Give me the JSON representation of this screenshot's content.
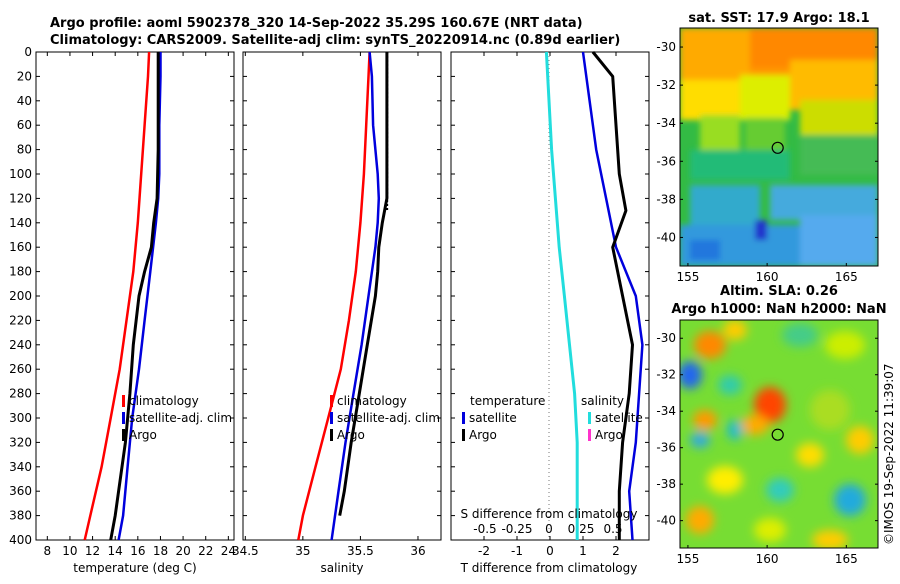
{
  "title": {
    "line1": "Argo profile: aoml 5902378_320 14-Sep-2022 35.29S 160.67E (NRT data)",
    "line2": "Climatology: CARS2009. Satellite-adj clim: synTS_20220914.nc (0.89d earlier)"
  },
  "watermark": "©IMOS 19-Sep-2022 11:39:07",
  "colors": {
    "red": "#ff0000",
    "blue": "#0000dd",
    "black": "#000000",
    "cyan": "#22dddd",
    "magenta": "#ff33cc"
  },
  "chart_data": [
    {
      "type": "line",
      "name": "temperature profile",
      "xlabel": "temperature (deg C)",
      "ylabel": "depth",
      "xlim": [
        7,
        24.5
      ],
      "ylim": [
        0,
        400
      ],
      "xticks": [
        "8",
        "10",
        "12",
        "14",
        "16",
        "18",
        "20",
        "22",
        "24"
      ],
      "yticks": [
        "0",
        "20",
        "40",
        "60",
        "80",
        "100",
        "120",
        "140",
        "160",
        "180",
        "200",
        "220",
        "240",
        "260",
        "280",
        "300",
        "320",
        "340",
        "360",
        "380",
        "400"
      ],
      "series": [
        {
          "name": "climatology",
          "color": "red",
          "depth": [
            0,
            20,
            60,
            100,
            140,
            180,
            220,
            260,
            300,
            340,
            380,
            400
          ],
          "values": [
            17.0,
            16.9,
            16.6,
            16.3,
            16.0,
            15.6,
            15.0,
            14.4,
            13.6,
            12.8,
            11.8,
            11.3
          ]
        },
        {
          "name": "satellite-adj. clim",
          "color": "blue",
          "depth": [
            0,
            20,
            60,
            100,
            120,
            140,
            180,
            220,
            260,
            300,
            340,
            380,
            400
          ],
          "values": [
            18.0,
            18.0,
            17.9,
            17.9,
            17.8,
            17.6,
            17.1,
            16.6,
            16.1,
            15.5,
            15.1,
            14.7,
            14.3
          ]
        },
        {
          "name": "Argo",
          "color": "black",
          "depth": [
            0,
            40,
            80,
            120,
            140,
            160,
            180,
            200,
            240,
            280,
            320,
            360,
            380,
            400
          ],
          "values": [
            17.8,
            17.8,
            17.8,
            17.7,
            17.4,
            17.2,
            16.6,
            16.1,
            15.6,
            15.3,
            14.9,
            14.3,
            14.0,
            13.6
          ]
        }
      ],
      "legend": [
        "climatology",
        "satellite-adj. clim",
        "Argo"
      ]
    },
    {
      "type": "line",
      "name": "salinity profile",
      "xlabel": "salinity",
      "ylim": [
        0,
        400
      ],
      "xlim": [
        34.48,
        36.2
      ],
      "xticks": [
        "34.5",
        "35",
        "35.5",
        "36"
      ],
      "series": [
        {
          "name": "climatology",
          "color": "red",
          "depth": [
            0,
            20,
            60,
            100,
            140,
            180,
            220,
            260,
            300,
            340,
            380,
            400
          ],
          "values": [
            35.58,
            35.57,
            35.55,
            35.53,
            35.5,
            35.46,
            35.4,
            35.33,
            35.22,
            35.11,
            35.0,
            34.96
          ]
        },
        {
          "name": "satellite-adj. clim",
          "color": "blue",
          "depth": [
            0,
            20,
            60,
            100,
            120,
            140,
            160,
            200,
            240,
            280,
            320,
            360,
            400
          ],
          "values": [
            35.58,
            35.6,
            35.61,
            35.65,
            35.66,
            35.65,
            35.63,
            35.57,
            35.51,
            35.44,
            35.37,
            35.31,
            35.25
          ]
        },
        {
          "name": "Argo",
          "color": "black",
          "depth": [
            0,
            40,
            80,
            120,
            140,
            160,
            180,
            200,
            240,
            280,
            320,
            360,
            380
          ],
          "values": [
            35.73,
            35.73,
            35.73,
            35.73,
            35.69,
            35.66,
            35.65,
            35.63,
            35.56,
            35.49,
            35.42,
            35.36,
            35.32
          ]
        }
      ],
      "legend": [
        "climatology",
        "satellite-adj. clim",
        "Argo"
      ]
    },
    {
      "type": "line",
      "name": "difference profile",
      "xlabel": "T difference from climatology",
      "xlabel_top": "S difference from climatology",
      "ylim": [
        0,
        400
      ],
      "xlim": [
        -3,
        3
      ],
      "xticks": [
        "-2",
        "-1",
        "0",
        "1",
        "2"
      ],
      "xticks_top": [
        "-0.5",
        "-0.25",
        "0",
        "0.25",
        "0.5"
      ],
      "series": [
        {
          "name": "temperature satellite",
          "color": "blue",
          "depth": [
            0,
            40,
            80,
            120,
            160,
            200,
            240,
            280,
            320,
            360,
            400
          ],
          "values": [
            1.0,
            1.2,
            1.4,
            1.7,
            2.0,
            2.6,
            2.8,
            2.7,
            2.6,
            2.4,
            2.5
          ]
        },
        {
          "name": "temperature Argo",
          "color": "black",
          "depth": [
            0,
            20,
            60,
            100,
            130,
            160,
            200,
            240,
            280,
            320,
            360,
            400
          ],
          "values": [
            1.3,
            1.9,
            2.0,
            2.1,
            2.3,
            1.9,
            2.2,
            2.5,
            2.4,
            2.2,
            2.1,
            2.1
          ]
        },
        {
          "name": "salinity satellite",
          "color": "cyan",
          "depth": [
            0,
            40,
            80,
            120,
            160,
            200,
            240,
            280,
            320,
            360,
            400
          ],
          "values": [
            -0.02,
            0.0,
            0.02,
            0.05,
            0.08,
            0.12,
            0.16,
            0.2,
            0.22,
            0.22,
            0.22
          ]
        }
      ],
      "legend_temperature": {
        "title": "temperature",
        "items": [
          "satellite",
          "Argo"
        ]
      },
      "legend_salinity": {
        "title": "salinity",
        "items": [
          "satellite",
          "Argo"
        ]
      }
    },
    {
      "type": "heatmap",
      "name": "sea surface temperature map",
      "title": "sat. SST: 17.9 Argo: 18.1",
      "xlim": [
        154.5,
        167
      ],
      "ylim": [
        -41.5,
        -29
      ],
      "xticks": [
        "155",
        "160",
        "165"
      ],
      "yticks": [
        "-30",
        "-32",
        "-34",
        "-36",
        "-38",
        "-40"
      ],
      "marker": {
        "lon": 160.67,
        "lat": -35.29
      }
    },
    {
      "type": "heatmap",
      "name": "sea level anomaly map",
      "title_line1": "Altim. SLA: 0.26",
      "title_line2": "Argo h1000: NaN h2000: NaN",
      "xlim": [
        154.5,
        167
      ],
      "ylim": [
        -41.5,
        -29
      ],
      "xticks": [
        "155",
        "160",
        "165"
      ],
      "yticks": [
        "-30",
        "-32",
        "-34",
        "-36",
        "-38",
        "-40"
      ],
      "marker": {
        "lon": 160.67,
        "lat": -35.29
      }
    }
  ]
}
